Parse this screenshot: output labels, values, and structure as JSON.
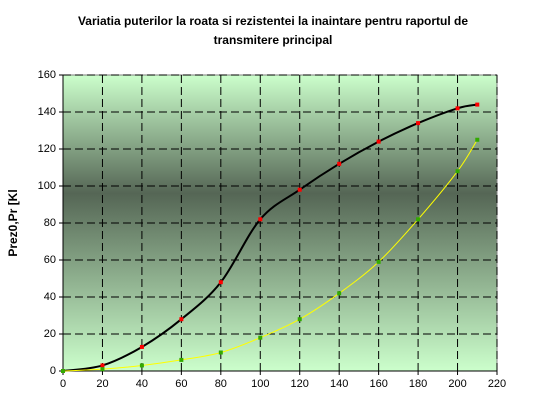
{
  "chart_data": {
    "type": "line",
    "title": [
      "Variatia puterilor la roata si rezistentei la inaintare pentru raportul de",
      "transmitere principal"
    ],
    "y_label": "Prez0,Pr [Kl",
    "x": [
      0,
      20,
      40,
      60,
      80,
      100,
      120,
      140,
      160,
      180,
      200,
      210
    ],
    "series": [
      {
        "color": "#000000",
        "marker_color": "#ff0000",
        "values": [
          0,
          3,
          13,
          28,
          48,
          82,
          98,
          112,
          124,
          134,
          142,
          144
        ]
      },
      {
        "color": "#ffff00",
        "marker_color": "#33aa00",
        "values": [
          0,
          1,
          3,
          6,
          10,
          18,
          28,
          42,
          59,
          82,
          108,
          125
        ]
      }
    ],
    "xlim": [
      0,
      220
    ],
    "xticks": [
      0,
      20,
      40,
      60,
      80,
      100,
      120,
      140,
      160,
      180,
      200,
      220
    ],
    "ylim": [
      0,
      160
    ],
    "yticks": [
      0,
      20,
      40,
      60,
      80,
      100,
      120,
      140,
      160
    ],
    "grid": true
  }
}
